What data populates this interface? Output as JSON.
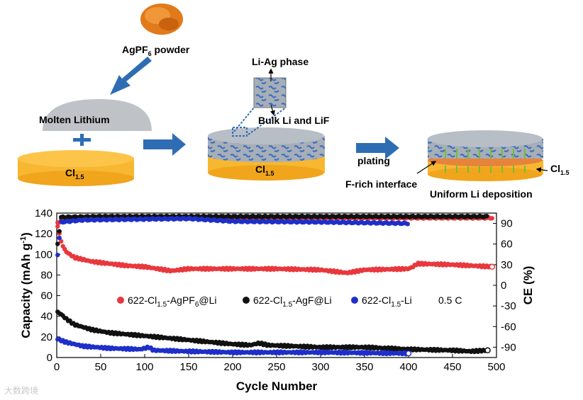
{
  "schematic": {
    "powder_label": "AgPF",
    "powder_sub": "6",
    "powder_suffix": " powder",
    "molten_label": "Molten Lithium",
    "cl_label": "Cl",
    "cl_sub": "1.5",
    "liag_label": "Li-Ag phase",
    "bulk_label": "Bulk Li and LiF",
    "plating_label": "plating",
    "frich_label": "F-rich interface",
    "uniform_label": "Uniform Li deposition",
    "colors": {
      "yellow": "#f7b731",
      "grey": "#9aa5b1",
      "blue": "#2e6db4",
      "orange": "#d97c1c",
      "green": "#6fbf3a"
    }
  },
  "chart_data": {
    "type": "scatter",
    "xlabel": "Cycle Number",
    "ylabel_left": "Capacity (mAh g",
    "ylabel_left_sup": "-1",
    "ylabel_left_end": ")",
    "ylabel_right": "CE (%)",
    "xlim": [
      0,
      500
    ],
    "ylim_left": [
      0,
      140
    ],
    "ylim_right": [
      -105,
      105
    ],
    "x_ticks": [
      "0",
      "50",
      "100",
      "150",
      "200",
      "250",
      "300",
      "350",
      "400",
      "450",
      "500"
    ],
    "y_left_ticks": [
      "0",
      "20",
      "40",
      "60",
      "80",
      "100",
      "120",
      "140"
    ],
    "y_right_ticks": [
      "-90",
      "-60",
      "-30",
      "0",
      "30",
      "60",
      "90"
    ],
    "rate_label": "0.5 C",
    "series": [
      {
        "name_main": "622-Cl",
        "name_sub": "1.5",
        "name_mid": "-AgPF",
        "name_sub2": "6",
        "name_end": "@Li",
        "color": "#e8383d",
        "end_cycle": 495,
        "capacity": [
          [
            1,
            130
          ],
          [
            5,
            112
          ],
          [
            10,
            103
          ],
          [
            20,
            97
          ],
          [
            40,
            93
          ],
          [
            60,
            91
          ],
          [
            80,
            89
          ],
          [
            100,
            88
          ],
          [
            130,
            84
          ],
          [
            150,
            86
          ],
          [
            200,
            86
          ],
          [
            250,
            86
          ],
          [
            300,
            85
          ],
          [
            330,
            82
          ],
          [
            350,
            85
          ],
          [
            400,
            86
          ],
          [
            405,
            88
          ],
          [
            410,
            91
          ],
          [
            450,
            90
          ],
          [
            495,
            88
          ]
        ],
        "ce": [
          [
            1,
            85
          ],
          [
            5,
            97
          ],
          [
            20,
            98
          ],
          [
            500,
            98
          ]
        ]
      },
      {
        "name_main": "622-Cl",
        "name_sub": "1.5",
        "name_mid": "-AgF",
        "name_sub2": "",
        "name_end": "@Li",
        "color": "#111111",
        "end_cycle": 490,
        "capacity": [
          [
            1,
            44
          ],
          [
            5,
            42
          ],
          [
            10,
            38
          ],
          [
            20,
            32
          ],
          [
            40,
            27
          ],
          [
            60,
            24
          ],
          [
            100,
            21
          ],
          [
            150,
            17
          ],
          [
            200,
            13
          ],
          [
            220,
            12
          ],
          [
            230,
            14
          ],
          [
            240,
            12
          ],
          [
            300,
            10
          ],
          [
            350,
            10
          ],
          [
            400,
            8
          ],
          [
            450,
            7
          ],
          [
            470,
            6
          ],
          [
            490,
            7
          ]
        ],
        "ce": [
          [
            1,
            60
          ],
          [
            5,
            99
          ],
          [
            50,
            100
          ],
          [
            490,
            100
          ]
        ]
      },
      {
        "name_main": "622-Cl",
        "name_sub": "1.5",
        "name_mid": "-Li",
        "name_sub2": "",
        "name_end": "",
        "color": "#1e2fc9",
        "end_cycle": 400,
        "capacity": [
          [
            1,
            18
          ],
          [
            10,
            15
          ],
          [
            30,
            11
          ],
          [
            60,
            9
          ],
          [
            95,
            8
          ],
          [
            105,
            10
          ],
          [
            110,
            7
          ],
          [
            150,
            6
          ],
          [
            200,
            5
          ],
          [
            300,
            5
          ],
          [
            400,
            4
          ]
        ],
        "ce": [
          [
            1,
            45
          ],
          [
            5,
            92
          ],
          [
            30,
            95
          ],
          [
            150,
            97
          ],
          [
            200,
            93
          ],
          [
            300,
            92
          ],
          [
            400,
            90
          ]
        ]
      }
    ]
  },
  "watermark": "大数跨境"
}
